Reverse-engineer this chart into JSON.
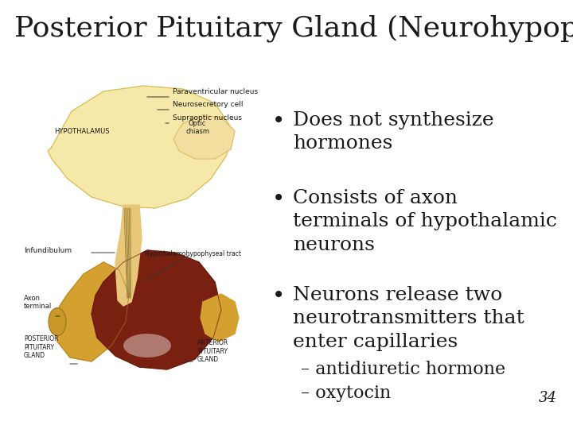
{
  "title": "Posterior Pituitary Gland (Neurohypophysis)",
  "title_fontsize": 26,
  "title_color": "#1a1a1a",
  "background_color": "#ffffff",
  "bullet_points": [
    "Does not synthesize\nhormones",
    "Consists of axon\nterminals of hypothalamic\nneurons",
    "Neurons release two\nneurotransmitters that\nenter capillaries"
  ],
  "sub_bullets": [
    "– antidiuretic hormone",
    "– oxytocin"
  ],
  "page_number": "34",
  "bullet_fontsize": 18,
  "sub_bullet_fontsize": 16,
  "text_color": "#1a1a1a"
}
